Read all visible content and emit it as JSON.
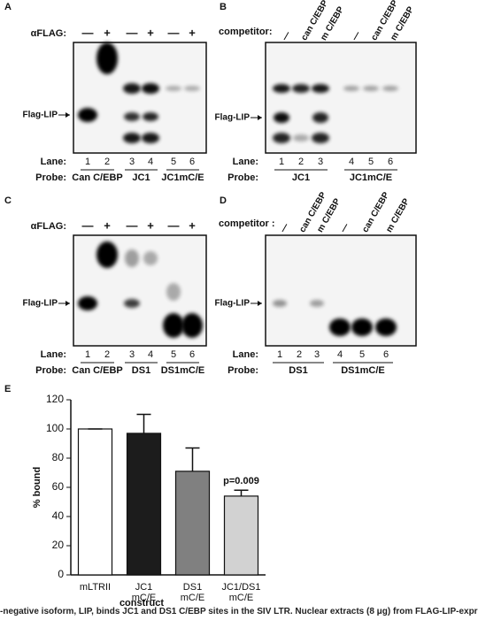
{
  "panels": [
    {
      "label": "A",
      "treatment_label": "αFLAG:",
      "treatment": [
        "—",
        "+",
        "—",
        "+",
        "—",
        "+"
      ],
      "band_label": "Flag-LIP",
      "lane_title": "Lane:",
      "lanes": [
        "1",
        "2",
        "3",
        "4",
        "5",
        "6"
      ],
      "probe_title": "Probe:",
      "probes": [
        "Can C/EBP",
        "JC1",
        "JC1mC/E"
      ]
    },
    {
      "label": "B",
      "treatment_label": "competitor:",
      "treatment": [
        "—",
        "can C/EBP",
        "m C/EBP",
        "—",
        "can C/EBP",
        "m C/EBP"
      ],
      "band_label": "Flag-LIP",
      "lane_title": "Lane:",
      "lanes": [
        "1",
        "2",
        "3",
        "4",
        "5",
        "6"
      ],
      "probe_title": "Probe:",
      "probes": [
        "JC1",
        "JC1mC/E"
      ]
    },
    {
      "label": "C",
      "treatment_label": "αFLAG:",
      "treatment": [
        "—",
        "+",
        "—",
        "+",
        "—",
        "+"
      ],
      "band_label": "Flag-LIP",
      "lane_title": "Lane:",
      "lanes": [
        "1",
        "2",
        "3",
        "4",
        "5",
        "6"
      ],
      "probe_title": "Probe:",
      "probes": [
        "Can C/EBP",
        "DS1",
        "DS1mC/E"
      ]
    },
    {
      "label": "D",
      "treatment_label": "competitor :",
      "treatment": [
        "—",
        "can C/EBP",
        "m C/EBP",
        "—",
        "can C/EBP",
        "m C/EBP"
      ],
      "band_label": "Flag-LIP",
      "lane_title": "Lane:",
      "lanes": [
        "1",
        "2",
        "3",
        "4",
        "5",
        "6"
      ],
      "probe_title": "Probe:",
      "probes": [
        "DS1",
        "DS1mC/E"
      ]
    }
  ],
  "panel_e_label": "E",
  "chart_data": {
    "type": "bar",
    "ylabel": "% bound",
    "xlabel": "construct",
    "categories": [
      "mLTRII",
      "JC1 mC/E",
      "DS1 mC/E",
      "JC1/DS1 mC/E"
    ],
    "series": [
      {
        "values": [
          100,
          97,
          71,
          54
        ],
        "errors": [
          0,
          13,
          16,
          4
        ],
        "colors": [
          "#ffffff",
          "#1c1c1c",
          "#808080",
          "#d2d2d2"
        ]
      }
    ],
    "annotation": "p=0.009",
    "ylim": [
      0,
      120
    ],
    "yticks": [
      0,
      20,
      40,
      60,
      80,
      100,
      120
    ]
  },
  "caption": "-negative isoform, LIP, binds JC1 and DS1 C/EBP sites in the SIV LTR. Nuclear extracts (8 μg) from FLAG-LIP-expr"
}
